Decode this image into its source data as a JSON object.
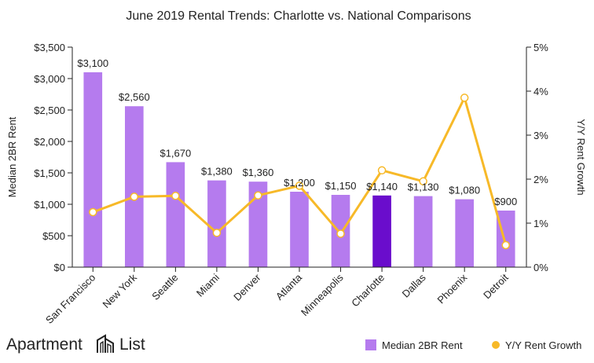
{
  "chart_data": {
    "type": "bar",
    "title": "June 2019 Rental Trends: Charlotte vs. National Comparisons",
    "categories": [
      "San Francisco",
      "New York",
      "Seattle",
      "Miami",
      "Denver",
      "Atlanta",
      "Minneapolis",
      "Charlotte",
      "Dallas",
      "Phoenix",
      "Detroit"
    ],
    "highlight_category": "Charlotte",
    "series": [
      {
        "name": "Median 2BR Rent",
        "type": "bar",
        "axis": "left",
        "values": [
          3100,
          2560,
          1670,
          1380,
          1360,
          1200,
          1150,
          1140,
          1130,
          1080,
          900
        ],
        "labels": [
          "$3,100",
          "$2,560",
          "$1,670",
          "$1,380",
          "$1,360",
          "$1,200",
          "$1,150",
          "$1,140",
          "$1,130",
          "$1,080",
          "$900"
        ]
      },
      {
        "name": "Y/Y Rent Growth",
        "type": "line",
        "axis": "right",
        "values": [
          1.25,
          1.6,
          1.62,
          0.78,
          1.63,
          1.85,
          0.76,
          2.2,
          1.95,
          3.85,
          0.5
        ]
      }
    ],
    "y_left": {
      "label": "Median 2BR Rent",
      "range": [
        0,
        3500
      ],
      "ticks": [
        0,
        500,
        1000,
        1500,
        2000,
        2500,
        3000,
        3500
      ],
      "tick_labels": [
        "$0",
        "$500",
        "$1,000",
        "$1,500",
        "$2,000",
        "$2,500",
        "$3,000",
        "$3,500"
      ]
    },
    "y_right": {
      "label": "Y/Y Rent Growth",
      "range": [
        0,
        5
      ],
      "ticks": [
        0,
        1,
        2,
        3,
        4,
        5
      ],
      "tick_labels": [
        "0%",
        "1%",
        "2%",
        "3%",
        "4%",
        "5%"
      ]
    },
    "legend": {
      "position": "bottom-right",
      "items": [
        "Median 2BR Rent",
        "Y/Y Rent Growth"
      ]
    },
    "grid": false,
    "colors": {
      "bar": "#b57bee",
      "bar_highlight": "#6a0dcc",
      "line": "#f7b928",
      "text": "#222222"
    }
  },
  "brand": {
    "name_part1": "Apartment",
    "name_part2": "List"
  }
}
